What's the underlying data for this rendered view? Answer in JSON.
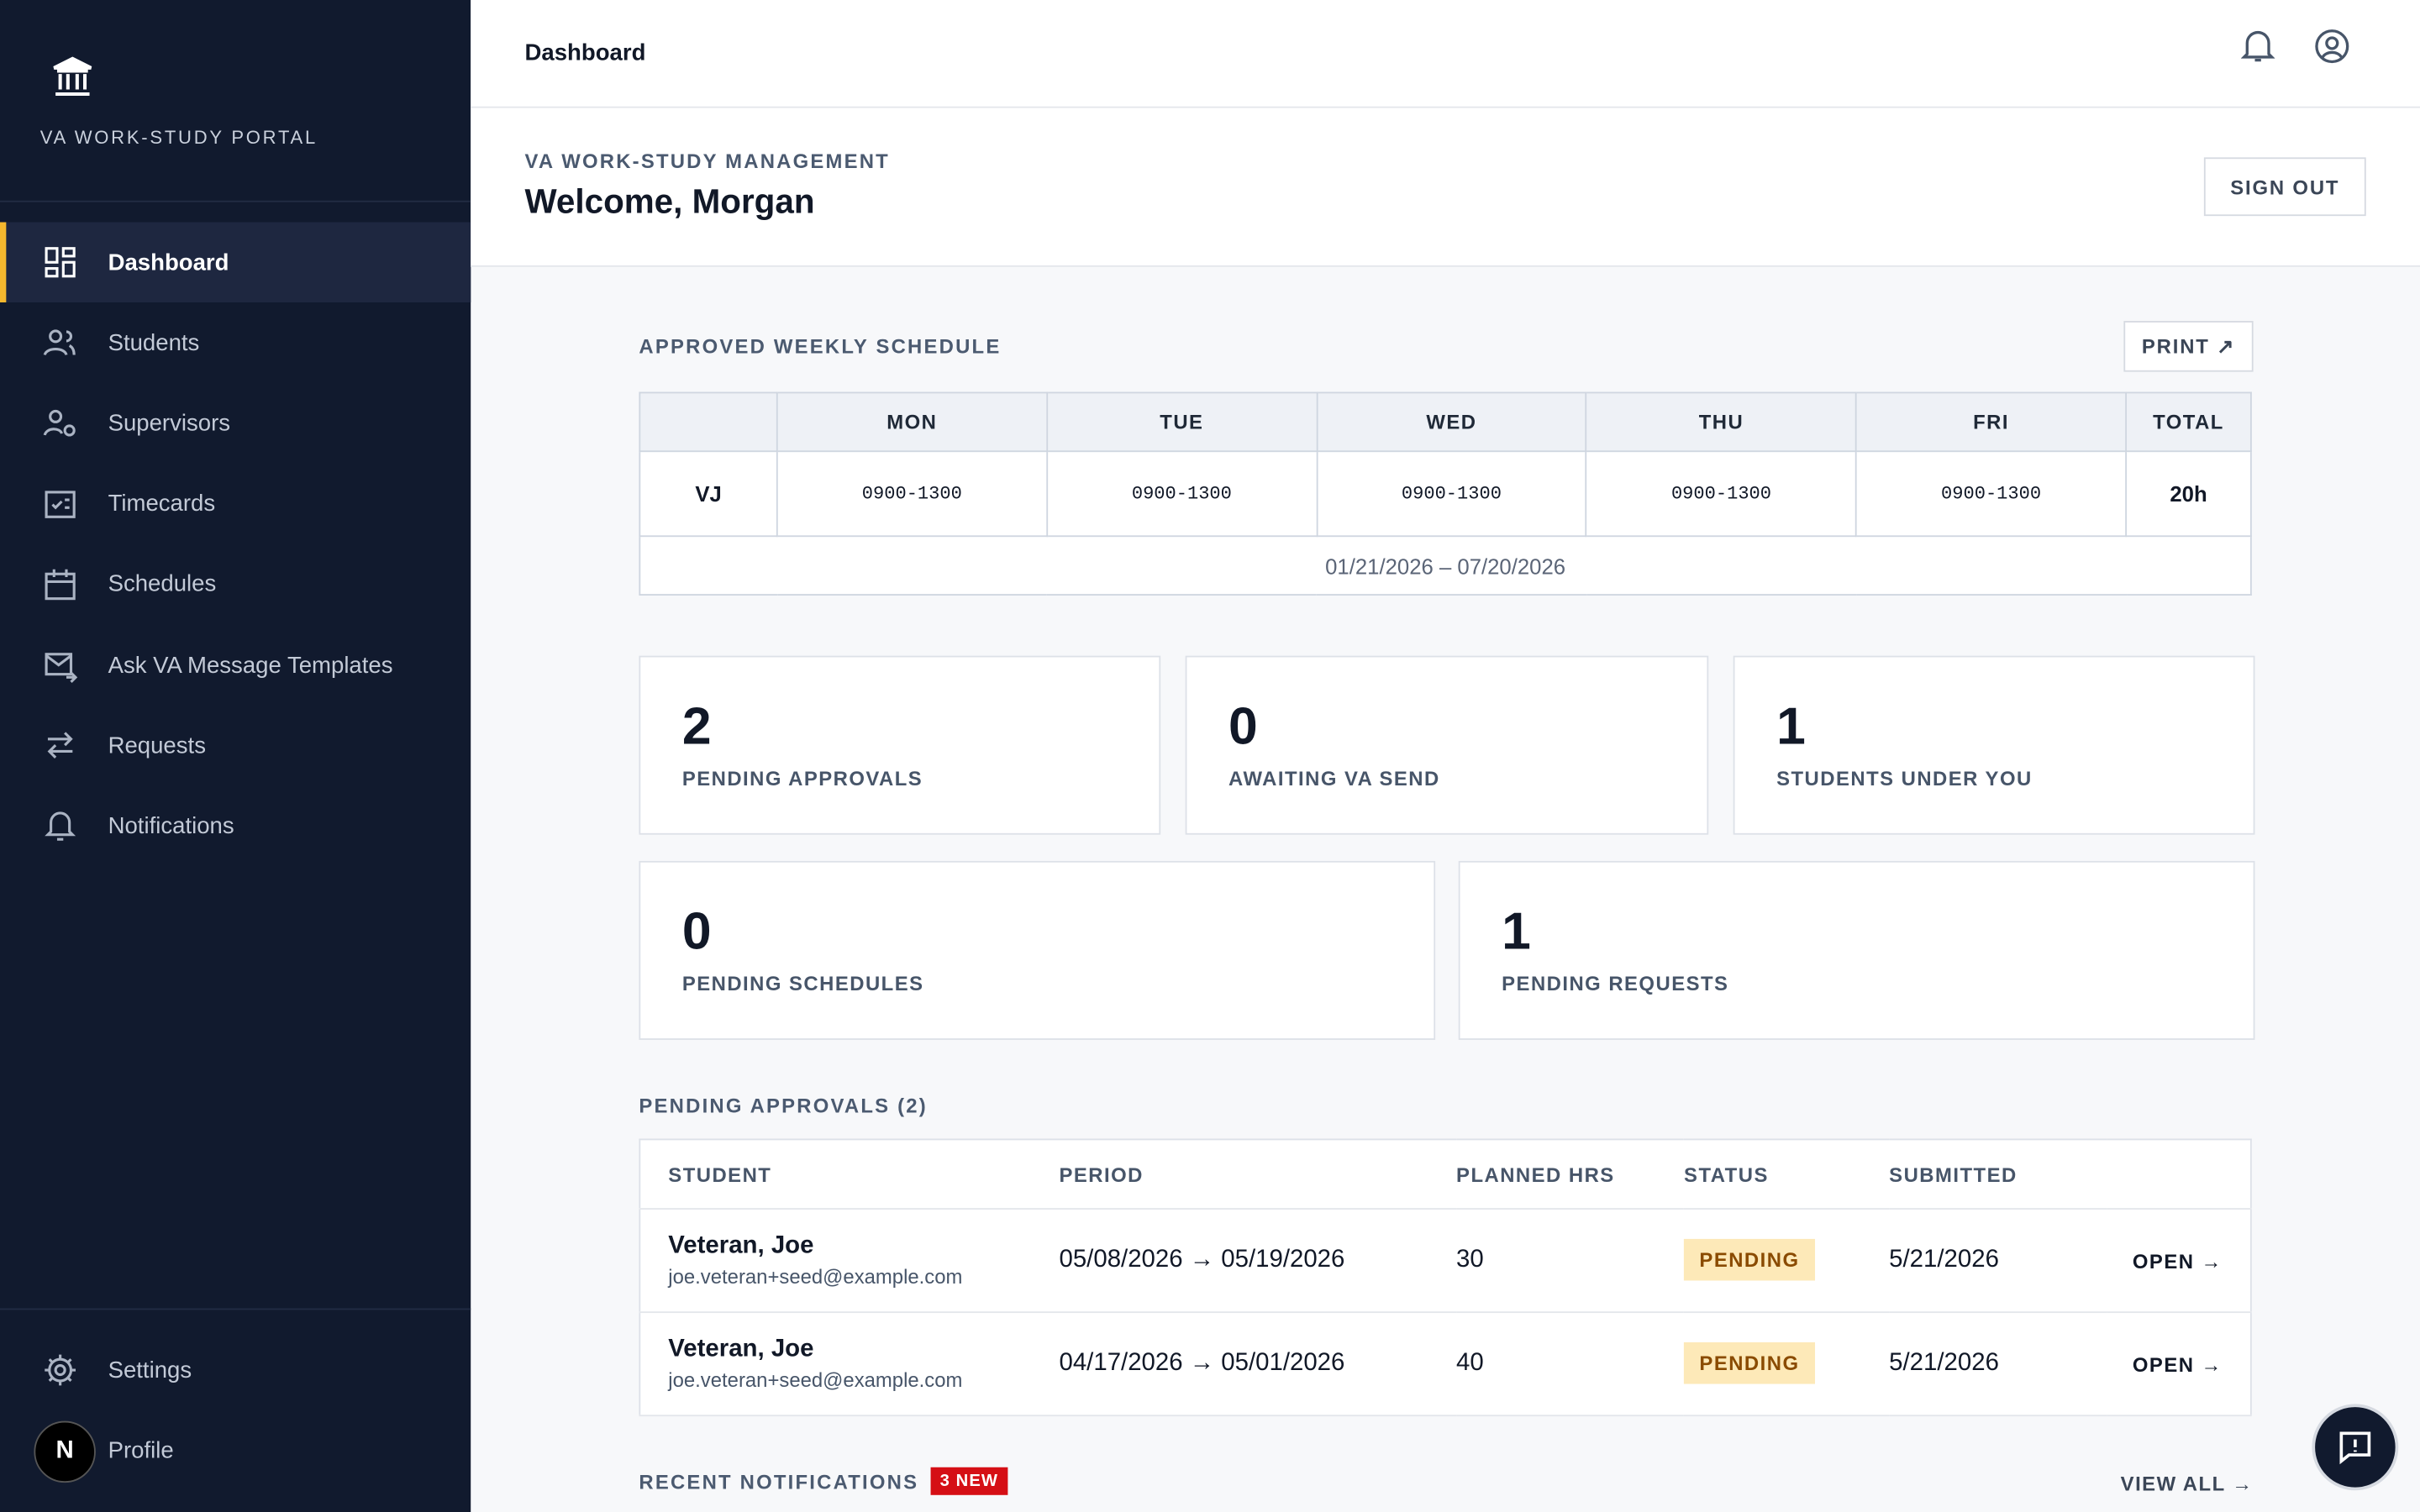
{
  "sidebar": {
    "brand": "VA WORK-STUDY PORTAL",
    "nav": [
      "Dashboard",
      "Students",
      "Supervisors",
      "Timecards",
      "Schedules",
      "Ask VA Message Templates",
      "Requests",
      "Notifications"
    ],
    "footer": [
      "Settings",
      "Profile"
    ],
    "avatar": "N"
  },
  "topbar": {
    "title": "Dashboard"
  },
  "header": {
    "eyebrow": "VA WORK-STUDY MANAGEMENT",
    "welcome": "Welcome, Morgan",
    "sign_out": "SIGN OUT"
  },
  "schedule": {
    "title": "APPROVED WEEKLY SCHEDULE",
    "print": "PRINT ↗",
    "columns": [
      "MON",
      "TUE",
      "WED",
      "THU",
      "FRI",
      "TOTAL"
    ],
    "row": {
      "name": "VJ",
      "cells": [
        "0900-1300",
        "0900-1300",
        "0900-1300",
        "0900-1300",
        "0900-1300"
      ],
      "total": "20h"
    },
    "range": "01/21/2026 – 07/20/2026"
  },
  "stats": [
    {
      "value": "2",
      "label": "PENDING APPROVALS"
    },
    {
      "value": "0",
      "label": "AWAITING VA SEND"
    },
    {
      "value": "1",
      "label": "STUDENTS UNDER YOU"
    },
    {
      "value": "0",
      "label": "PENDING SCHEDULES"
    },
    {
      "value": "1",
      "label": "PENDING REQUESTS"
    }
  ],
  "approvals": {
    "title": "PENDING APPROVALS (2)",
    "columns": [
      "STUDENT",
      "PERIOD",
      "PLANNED HRS",
      "STATUS",
      "SUBMITTED"
    ],
    "rows": [
      {
        "name": "Veteran, Joe",
        "email": "joe.veteran+seed@example.com",
        "period": "05/08/2026 → 05/19/2026",
        "hours": "30",
        "status": "PENDING",
        "submitted": "5/21/2026",
        "action": "OPEN →"
      },
      {
        "name": "Veteran, Joe",
        "email": "joe.veteran+seed@example.com",
        "period": "04/17/2026 → 05/01/2026",
        "hours": "40",
        "status": "PENDING",
        "submitted": "5/21/2026",
        "action": "OPEN →"
      }
    ]
  },
  "notifications": {
    "title": "RECENT NOTIFICATIONS",
    "badge": "3 NEW",
    "view_all": "VIEW ALL →"
  }
}
